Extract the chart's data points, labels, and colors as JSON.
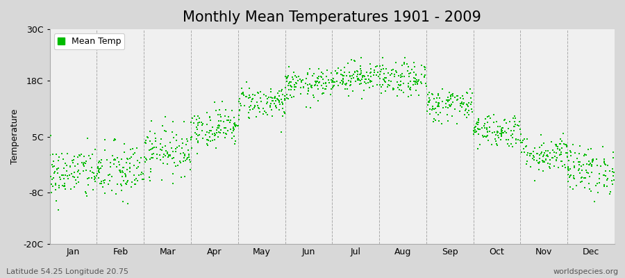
{
  "title": "Monthly Mean Temperatures 1901 - 2009",
  "ylabel": "Temperature",
  "yticks": [
    -20,
    -8,
    5,
    18,
    30
  ],
  "ytick_labels": [
    "-20C",
    "-8C",
    "5C",
    "18C",
    "30C"
  ],
  "ylim": [
    -20,
    30
  ],
  "months": [
    "Jan",
    "Feb",
    "Mar",
    "Apr",
    "May",
    "Jun",
    "Jul",
    "Aug",
    "Sep",
    "Oct",
    "Nov",
    "Dec"
  ],
  "dot_color": "#00bb00",
  "figure_bg_color": "#d8d8d8",
  "plot_bg_color": "#f0f0f0",
  "footer_left": "Latitude 54.25 Longitude 20.75",
  "footer_right": "worldspecies.org",
  "legend_label": "Mean Temp",
  "title_fontsize": 15,
  "axis_fontsize": 9,
  "footer_fontsize": 8,
  "n_years": 109,
  "monthly_means": [
    -3.5,
    -3.2,
    1.8,
    7.2,
    13.0,
    17.0,
    19.0,
    18.2,
    12.5,
    6.5,
    1.0,
    -2.8
  ],
  "monthly_stds": [
    3.2,
    3.5,
    2.8,
    2.3,
    2.0,
    1.8,
    1.8,
    2.0,
    2.0,
    2.0,
    2.2,
    2.8
  ]
}
